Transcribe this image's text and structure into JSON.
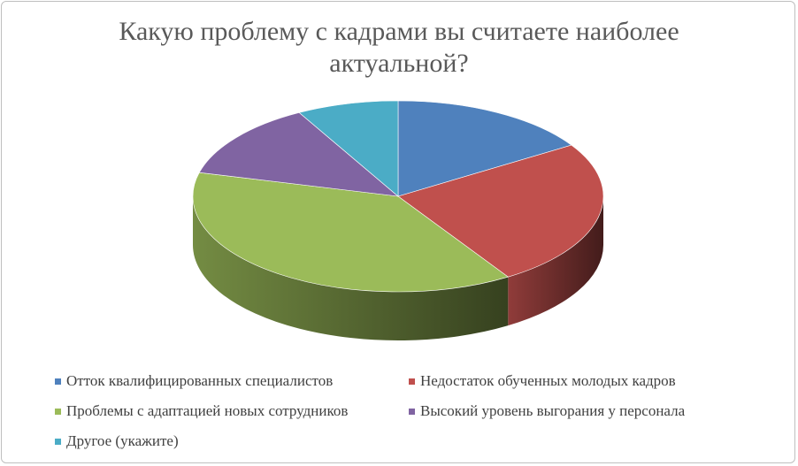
{
  "chart_data": {
    "type": "pie3d",
    "title": "Какую проблему с кадрами вы считаете наиболее актуальной?",
    "categories": [
      "Отток квалифицированных специалистов",
      "Недостаток обученных молодых кадров",
      "Проблемы с адаптацией новых сотрудников",
      "Высокий уровень выгорания у персонала",
      "Другое (укажите)"
    ],
    "values": [
      16,
      25,
      38,
      13,
      8
    ],
    "colors": [
      "#4f81bd",
      "#c0504d",
      "#9bbb59",
      "#8064a2",
      "#4bacc6"
    ],
    "legend": "bottom"
  }
}
